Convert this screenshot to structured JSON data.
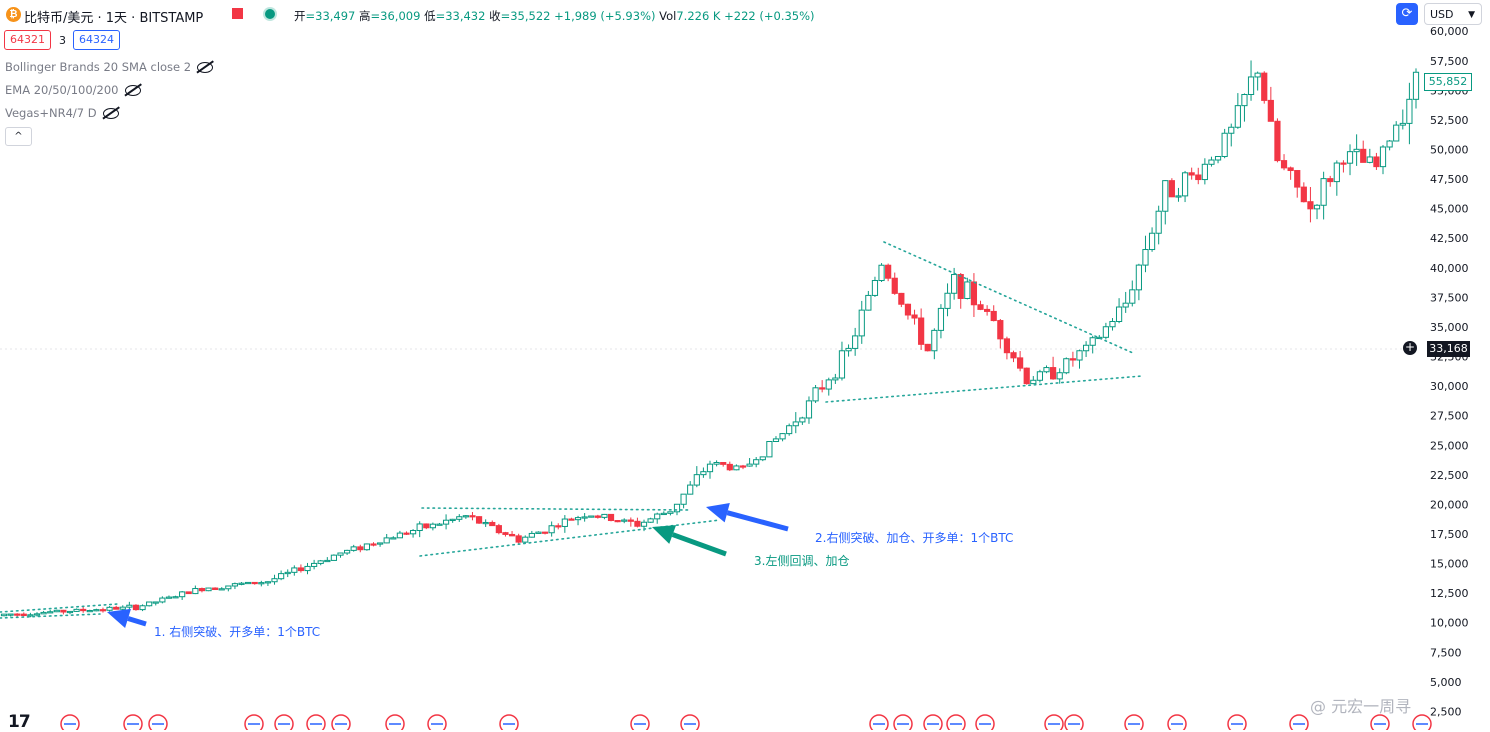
{
  "header": {
    "logo": "btc-icon",
    "title": "比特币/美元 · 1天 · BITSTAMP",
    "ohlc": [
      {
        "label": "开",
        "value": "=33,497"
      },
      {
        "label": "高",
        "value": "=36,009"
      },
      {
        "label": "低",
        "value": "=33,432"
      },
      {
        "label": "收",
        "value": "=35,522"
      },
      {
        "label": "",
        "value": "+1,989 (+5.93%)"
      },
      {
        "label": "Vol",
        "value": "7.226 K"
      },
      {
        "label": "",
        "value": "+222 (+0.35%)"
      }
    ]
  },
  "toolbar": {
    "left_box": "64321",
    "count": "3",
    "right_box": "64324",
    "currency": "USD"
  },
  "indicators": [
    {
      "label": "Bollinger Brands 20 SMA close 2"
    },
    {
      "label": "EMA 20/50/100/200"
    },
    {
      "label": "Vegas+NR4/7 D"
    }
  ],
  "price_tags": {
    "last": "55,852",
    "crosshair": "33,168"
  },
  "annotations": [
    {
      "text": "1. 右侧突破、开多单：1个BTC",
      "color": "blue"
    },
    {
      "text": "2.右侧突破、加仓、开多单：1个BTC",
      "color": "blue"
    },
    {
      "text": "3.左侧回调、加仓",
      "color": "green"
    }
  ],
  "branding": {
    "logo": "17",
    "watermark": "@ 元宏一周寻"
  },
  "chart_data": {
    "type": "candlestick",
    "series": [
      {
        "name": "",
        "values": []
      }
    ],
    "y_axis": {
      "ticks": [
        "2,500",
        "5,000",
        "7,500",
        "10,000",
        "12,500",
        "15,000",
        "17,500",
        "20,000",
        "22,500",
        "25,000",
        "27,500",
        "30,000",
        "32,500",
        "35,000",
        "37,500",
        "40,000",
        "42,500",
        "45,000",
        "47,500",
        "50,000",
        "52,500",
        "55,000",
        "57,500",
        "60,000"
      ],
      "range": [
        2500,
        60000
      ],
      "position": "right"
    },
    "approx_close_path": [
      {
        "i": 0,
        "close": 10700
      },
      {
        "i": 20,
        "close": 11300
      },
      {
        "i": 30,
        "close": 12900
      },
      {
        "i": 40,
        "close": 13500
      },
      {
        "i": 50,
        "close": 15700
      },
      {
        "i": 60,
        "close": 17500
      },
      {
        "i": 70,
        "close": 19000
      },
      {
        "i": 78,
        "close": 17000
      },
      {
        "i": 88,
        "close": 19200
      },
      {
        "i": 96,
        "close": 18300
      },
      {
        "i": 101,
        "close": 19500
      },
      {
        "i": 107,
        "close": 23500
      },
      {
        "i": 112,
        "close": 23000
      },
      {
        "i": 118,
        "close": 26000
      },
      {
        "i": 122,
        "close": 28500
      },
      {
        "i": 128,
        "close": 33000
      },
      {
        "i": 133,
        "close": 40500
      },
      {
        "i": 137,
        "close": 36000
      },
      {
        "i": 140,
        "close": 33000
      },
      {
        "i": 144,
        "close": 39000
      },
      {
        "i": 150,
        "close": 35500
      },
      {
        "i": 155,
        "close": 30500
      },
      {
        "i": 160,
        "close": 31500
      },
      {
        "i": 165,
        "close": 33500
      },
      {
        "i": 170,
        "close": 37000
      },
      {
        "i": 176,
        "close": 46500
      },
      {
        "i": 181,
        "close": 48000
      },
      {
        "i": 186,
        "close": 51500
      },
      {
        "i": 190,
        "close": 57000
      },
      {
        "i": 193,
        "close": 49000
      },
      {
        "i": 198,
        "close": 45000
      },
      {
        "i": 203,
        "close": 49500
      },
      {
        "i": 208,
        "close": 48500
      },
      {
        "i": 214,
        "close": 55852
      }
    ],
    "grid": false
  }
}
